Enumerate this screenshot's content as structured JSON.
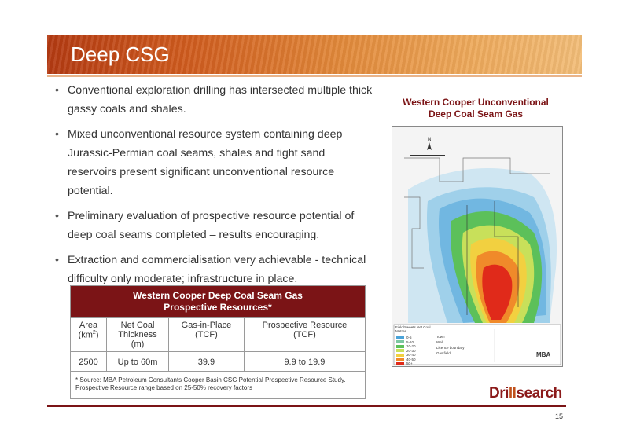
{
  "slide": {
    "title": "Deep CSG",
    "page_number": "15",
    "logo": {
      "text_part1": "Dri",
      "text_accent": "ll",
      "text_part2": "search"
    }
  },
  "bullets": [
    "Conventional exploration drilling has intersected multiple thick gassy coals and shales.",
    "Mixed unconventional resource system containing deep Jurassic-Permian coal seams, shales and tight sand reservoirs present significant unconventional resource potential.",
    "Preliminary evaluation of prospective resource potential of deep coal seams completed – results encouraging.",
    "Extraction and commercialisation very achievable - technical difficulty only moderate; infrastructure in place."
  ],
  "table": {
    "title_line1": "Western Cooper Deep Coal Seam Gas",
    "title_line2": "Prospective Resources*",
    "headers": {
      "area_line1": "Area",
      "area_line2_base": "(km",
      "area_line2_sup": "2",
      "area_line2_end": ")",
      "thickness_line1": "Net Coal",
      "thickness_line2": "Thickness",
      "thickness_line3": "(m)",
      "gip_line1": "Gas-in-Place",
      "gip_line2": "(TCF)",
      "pr_line1": "Prospective Resource",
      "pr_line2": "(TCF)"
    },
    "row": {
      "area": "2500",
      "thickness": "Up to 60m",
      "gip": "39.9",
      "pr": "9.9 to 19.9"
    },
    "note_line1": "* Source: MBA Petroleum Consultants Cooper Basin CSG Potential Prospective Resource Study.",
    "note_line2": "Prospective Resource range based on 25-50% recovery factors"
  },
  "map": {
    "title_line1": "Western Cooper Unconventional",
    "title_line2": "Deep Coal Seam Gas",
    "legend_title": "Field/Sweets Net Coal",
    "legend_sub": "Metres",
    "legend_items": [
      {
        "label": "0-5",
        "color": "#4aa3d8"
      },
      {
        "label": "5-10",
        "color": "#7cc7a0"
      },
      {
        "label": "10-20",
        "color": "#5cc05a"
      },
      {
        "label": "20-30",
        "color": "#c8e05a"
      },
      {
        "label": "30-40",
        "color": "#f2d040"
      },
      {
        "label": "40-50",
        "color": "#f08a2a"
      },
      {
        "label": "50+",
        "color": "#e02a1a"
      }
    ],
    "legend_symbols": [
      "Town",
      "Well",
      "Licence boundary",
      "Gas field"
    ],
    "company": "MBA"
  }
}
